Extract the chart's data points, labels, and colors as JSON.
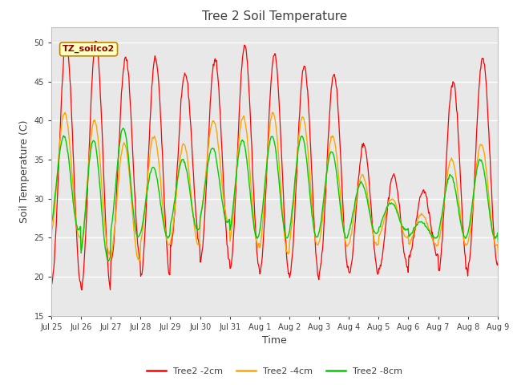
{
  "title": "Tree 2 Soil Temperature",
  "xlabel": "Time",
  "ylabel": "Soil Temperature (C)",
  "ylim": [
    15,
    52
  ],
  "yticks": [
    15,
    20,
    25,
    30,
    35,
    40,
    45,
    50
  ],
  "annotation_text": "TZ_soilco2",
  "legend_labels": [
    "Tree2 -2cm",
    "Tree2 -4cm",
    "Tree2 -8cm"
  ],
  "colors": [
    "#FF0000",
    "#FFA500",
    "#00CC00"
  ],
  "fig_bg_color": "#FFFFFF",
  "plot_bg_color": "#E8E8E8",
  "tick_labels": [
    "Jul 25",
    "Jul 26",
    "Jul 27",
    "Jul 28",
    "Jul 29",
    "Jul 30",
    "Jul 31",
    "Aug 1",
    "Aug 2",
    "Aug 3",
    "Aug 4",
    "Aug 5",
    "Aug 6",
    "Aug 7",
    "Aug 8",
    "Aug 9"
  ],
  "num_days": 16,
  "title_fontsize": 11,
  "label_fontsize": 9,
  "tick_fontsize": 7,
  "legend_fontsize": 8
}
